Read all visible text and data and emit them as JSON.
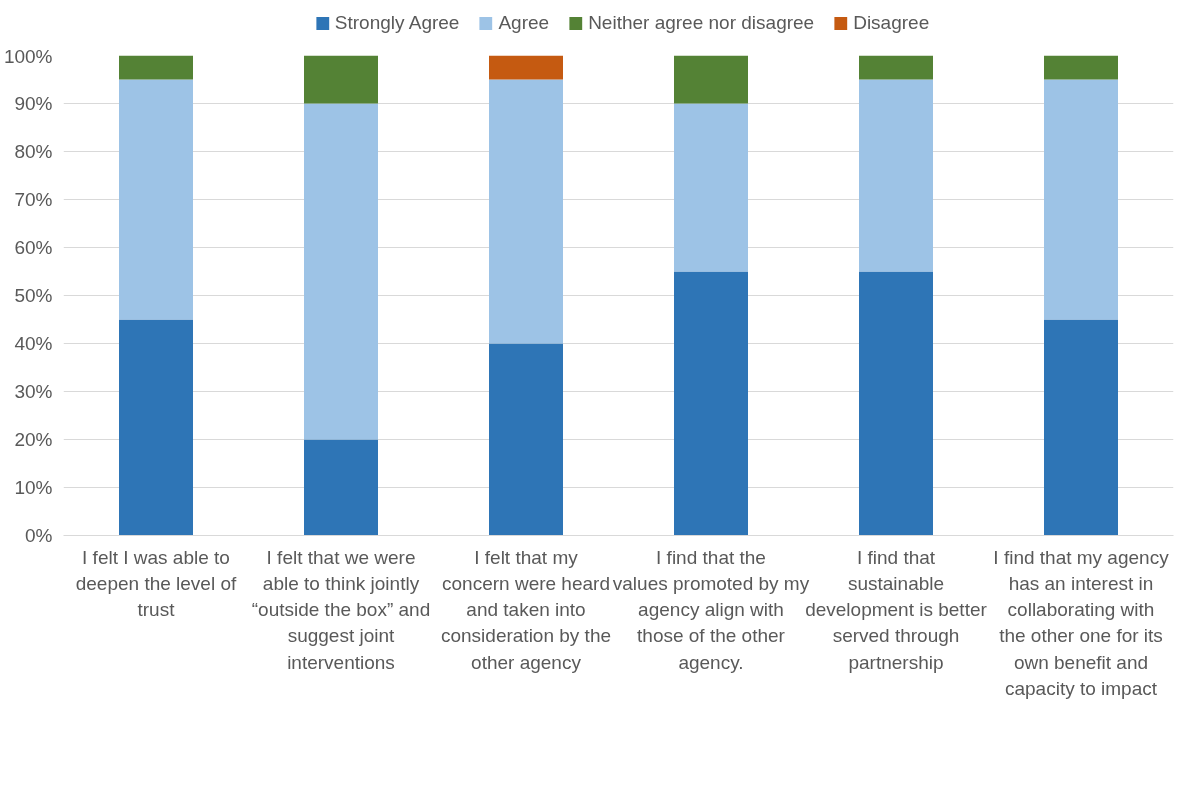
{
  "chart_data": {
    "type": "bar",
    "stacked": true,
    "categories": [
      "I felt I was able to deepen the level of trust",
      "I felt that we were able to think jointly “outside the box” and suggest joint interventions",
      "I felt that my concern were heard and taken into consideration by the other agency",
      "I find that the values promoted by my agency align with those of the other agency.",
      "I find that sustainable development is better served through partnership",
      "I find that my agency has an interest in collaborating with the other one for its own benefit and capacity to impact"
    ],
    "series": [
      {
        "name": "Strongly Agree",
        "color": "#2e75b6",
        "values": [
          45,
          20,
          40,
          55,
          55,
          45
        ]
      },
      {
        "name": "Agree",
        "color": "#9dc3e6",
        "values": [
          50,
          70,
          55,
          35,
          40,
          50
        ]
      },
      {
        "name": "Neither agree nor disagree",
        "color": "#548235",
        "values": [
          5,
          10,
          null,
          10,
          5,
          5
        ]
      },
      {
        "name": "Disagree",
        "color": "#c55a11",
        "values": [
          null,
          null,
          5,
          null,
          null,
          null
        ]
      }
    ],
    "ylim": [
      0,
      100
    ],
    "yticks": [
      {
        "value": 0,
        "label": "0%"
      },
      {
        "value": 10,
        "label": "10%"
      },
      {
        "value": 20,
        "label": "20%"
      },
      {
        "value": 30,
        "label": "30%"
      },
      {
        "value": 40,
        "label": "40%"
      },
      {
        "value": 50,
        "label": "50%"
      },
      {
        "value": 60,
        "label": "60%"
      },
      {
        "value": 70,
        "label": "70%"
      },
      {
        "value": 80,
        "label": "80%"
      },
      {
        "value": 90,
        "label": "90%"
      },
      {
        "value": 100,
        "label": "100%"
      }
    ],
    "grid": "y",
    "legend": "top"
  }
}
